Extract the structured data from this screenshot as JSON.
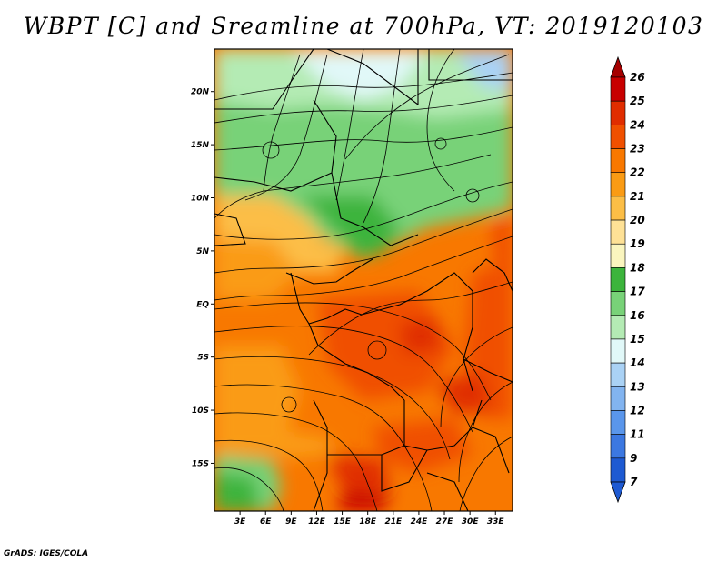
{
  "title": "WBPT [C] and Sreamline at 700hPa, VT: 2019120103",
  "footer": "GrADS: IGES/COLA",
  "map": {
    "variable": "Wet-bulb potential temperature",
    "units": "C",
    "level": "700hPa",
    "valid_time": "2019120103",
    "lat_range": [
      -19.5,
      24
    ],
    "lon_range": [
      0,
      35
    ],
    "lat_ticks": [
      {
        "value": 20,
        "label": "20N"
      },
      {
        "value": 15,
        "label": "15N"
      },
      {
        "value": 10,
        "label": "10N"
      },
      {
        "value": 5,
        "label": "5N"
      },
      {
        "value": 0,
        "label": "EQ"
      },
      {
        "value": -5,
        "label": "5S"
      },
      {
        "value": -10,
        "label": "10S"
      },
      {
        "value": -15,
        "label": "15S"
      }
    ],
    "lon_ticks": [
      {
        "value": 3,
        "label": "3E"
      },
      {
        "value": 6,
        "label": "6E"
      },
      {
        "value": 9,
        "label": "9E"
      },
      {
        "value": 12,
        "label": "12E"
      },
      {
        "value": 15,
        "label": "15E"
      },
      {
        "value": 18,
        "label": "18E"
      },
      {
        "value": 21,
        "label": "21E"
      },
      {
        "value": 24,
        "label": "24E"
      },
      {
        "value": 27,
        "label": "27E"
      },
      {
        "value": 30,
        "label": "30E"
      },
      {
        "value": 33,
        "label": "33E"
      }
    ]
  },
  "colorbar": {
    "levels": [
      {
        "label": "26",
        "color": "#a50000"
      },
      {
        "label": "25",
        "color": "#c80000"
      },
      {
        "label": "24",
        "color": "#e02d00"
      },
      {
        "label": "23",
        "color": "#f05000"
      },
      {
        "label": "22",
        "color": "#f87800"
      },
      {
        "label": "21",
        "color": "#fa9b14"
      },
      {
        "label": "20",
        "color": "#fcbe46"
      },
      {
        "label": "19",
        "color": "#fee196"
      },
      {
        "label": "18",
        "color": "#faf5be"
      },
      {
        "label": "17",
        "color": "#3cb43c"
      },
      {
        "label": "16",
        "color": "#78d278"
      },
      {
        "label": "15",
        "color": "#b4ebb4"
      },
      {
        "label": "14",
        "color": "#e1f8f8"
      },
      {
        "label": "13",
        "color": "#aad2f5"
      },
      {
        "label": "12",
        "color": "#82b4f0"
      },
      {
        "label": "11",
        "color": "#5a96eb"
      },
      {
        "label": "9",
        "color": "#3c78e1"
      },
      {
        "label": "7",
        "color": "#1e5ad2"
      }
    ],
    "bottom_color": "#1e5ad2"
  }
}
